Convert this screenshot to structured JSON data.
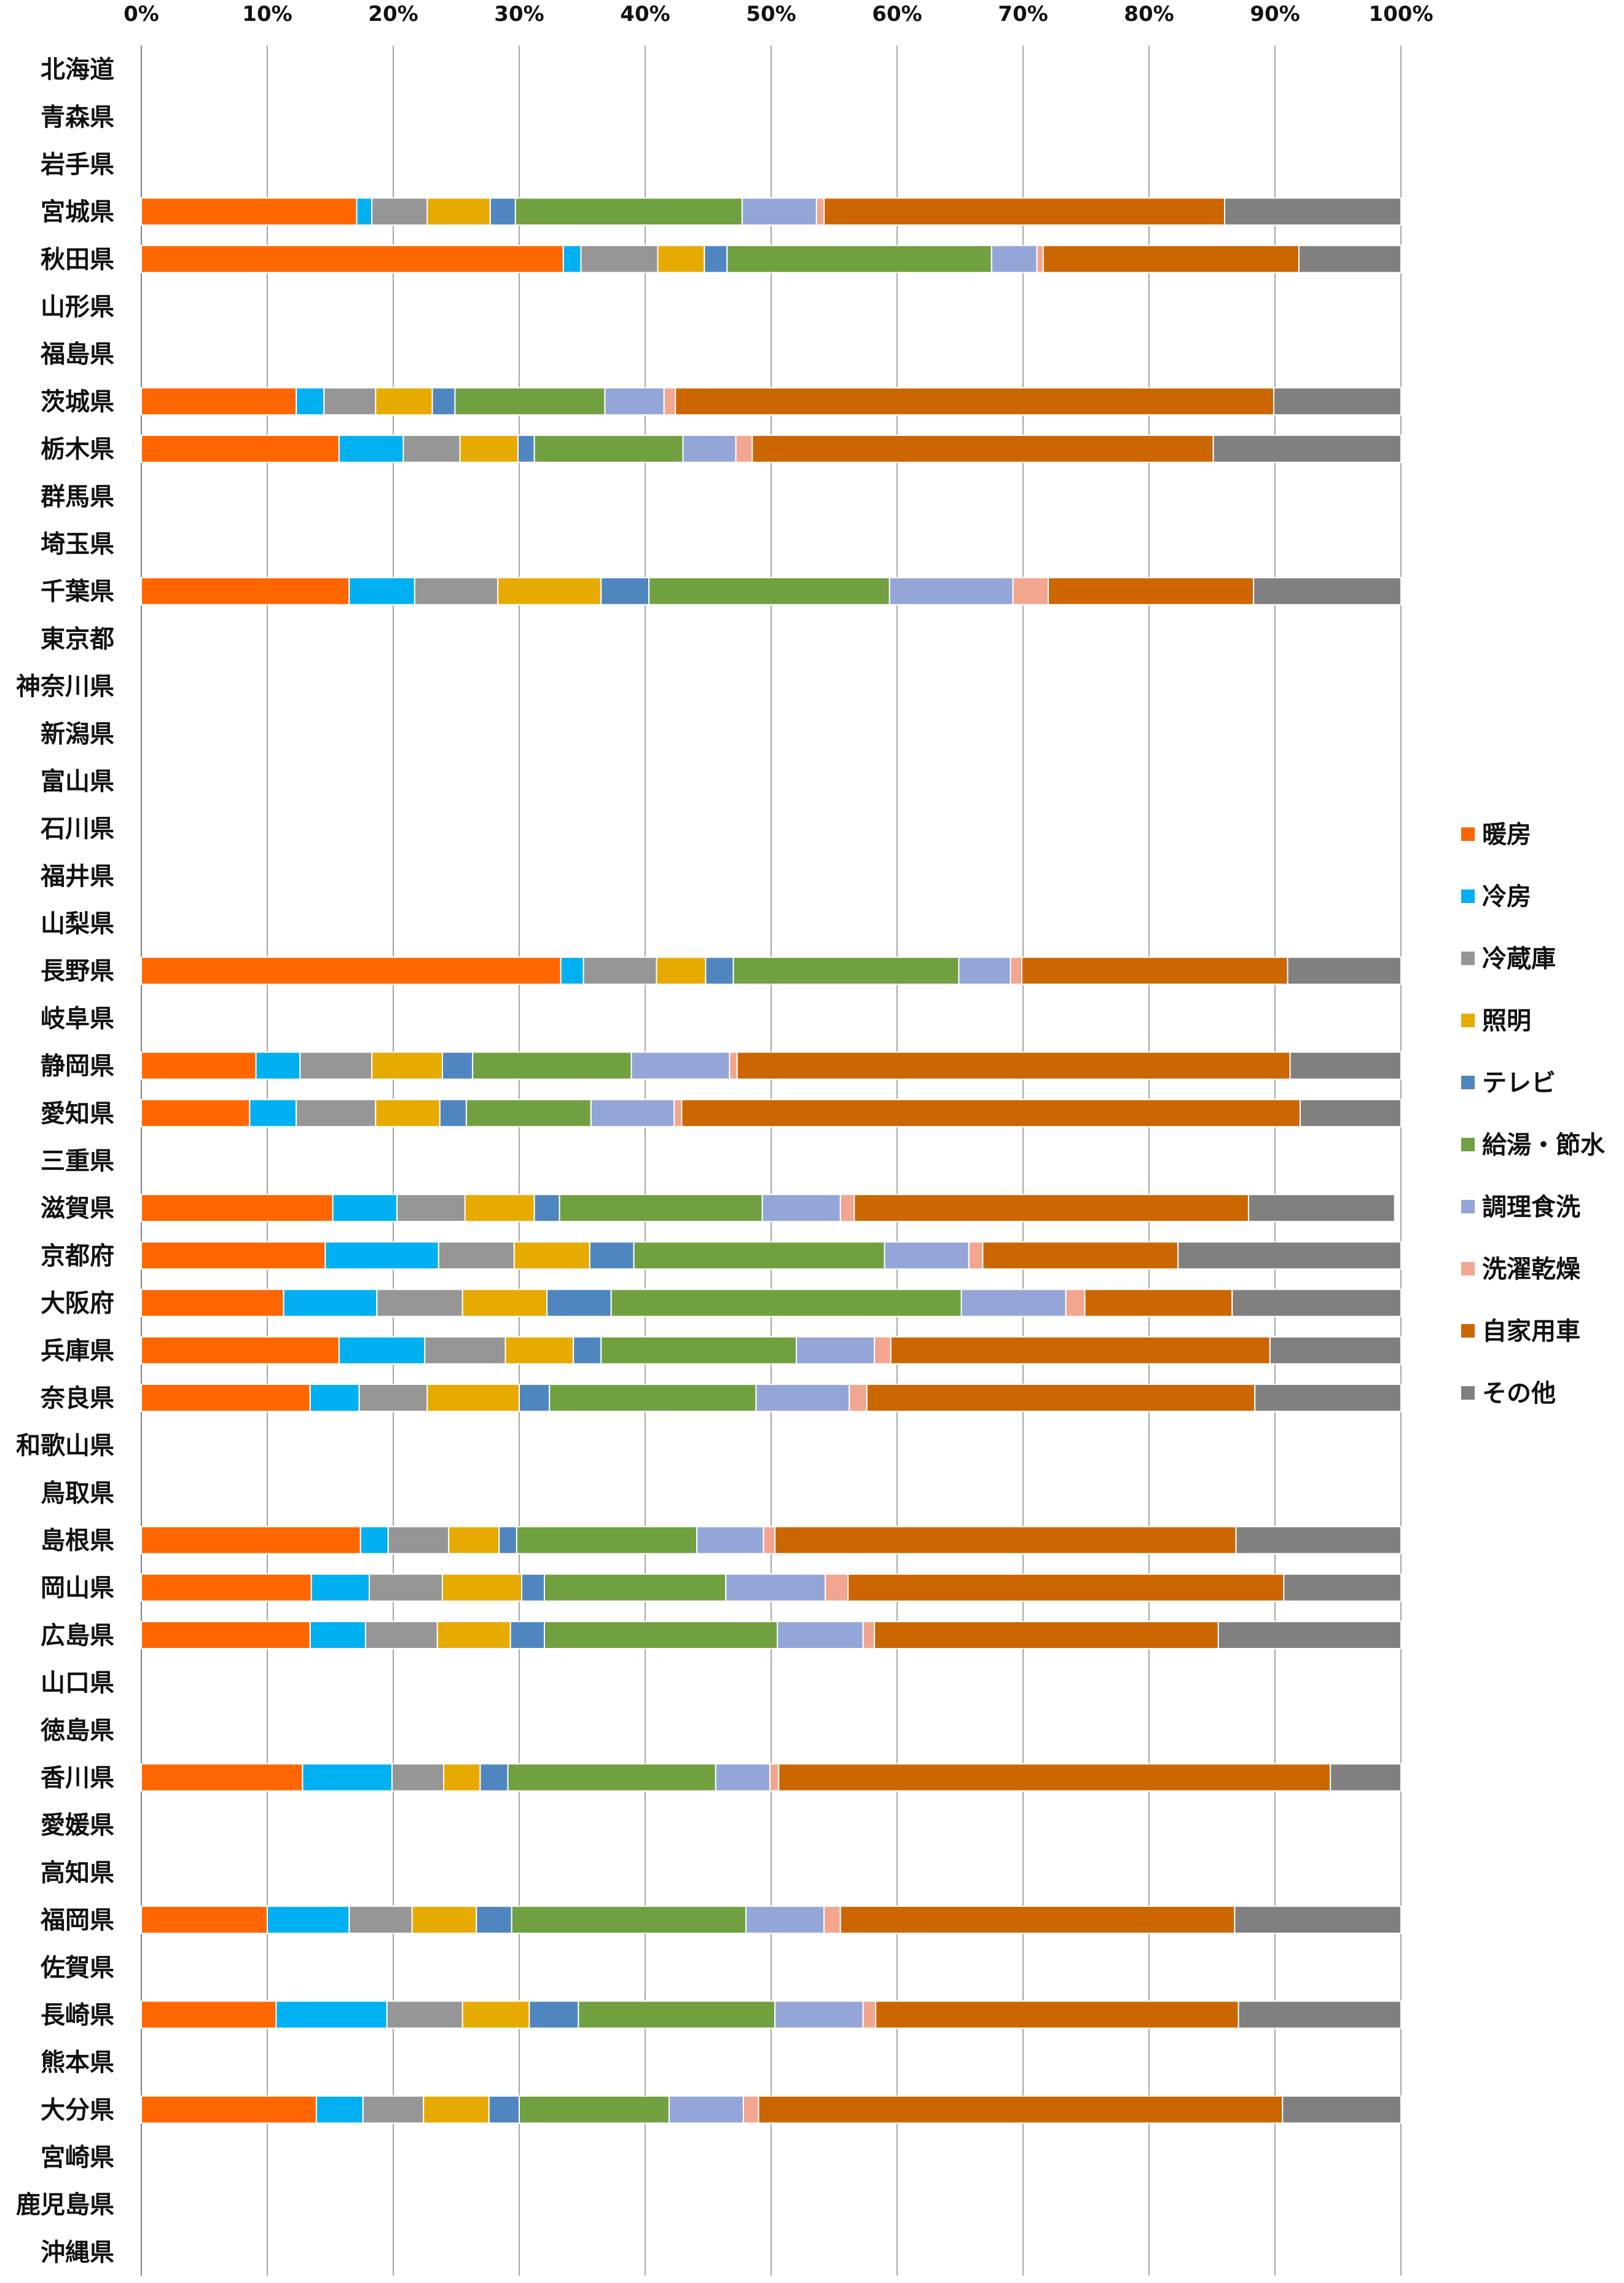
{
  "chart_data": {
    "type": "bar",
    "orientation": "horizontal",
    "stacked": "percent",
    "xlim": [
      0,
      100
    ],
    "x_ticks": [
      "0%",
      "10%",
      "20%",
      "30%",
      "40%",
      "50%",
      "60%",
      "70%",
      "80%",
      "90%",
      "100%"
    ],
    "grid": "vertical",
    "legend_position": "right",
    "categories": [
      "北海道",
      "青森県",
      "岩手県",
      "宮城県",
      "秋田県",
      "山形県",
      "福島県",
      "茨城県",
      "栃木県",
      "群馬県",
      "埼玉県",
      "千葉県",
      "東京都",
      "神奈川県",
      "新潟県",
      "富山県",
      "石川県",
      "福井県",
      "山梨県",
      "長野県",
      "岐阜県",
      "静岡県",
      "愛知県",
      "三重県",
      "滋賀県",
      "京都府",
      "大阪府",
      "兵庫県",
      "奈良県",
      "和歌山県",
      "鳥取県",
      "島根県",
      "岡山県",
      "広島県",
      "山口県",
      "徳島県",
      "香川県",
      "愛媛県",
      "高知県",
      "福岡県",
      "佐賀県",
      "長崎県",
      "熊本県",
      "大分県",
      "宮崎県",
      "鹿児島県",
      "沖縄県"
    ],
    "series": [
      {
        "name": "暖房",
        "color": "#FF6600",
        "values": [
          null,
          null,
          null,
          17.1,
          33.5,
          null,
          null,
          12.3,
          15.7,
          null,
          null,
          16.5,
          null,
          null,
          null,
          null,
          null,
          null,
          null,
          33.3,
          null,
          9.1,
          8.6,
          null,
          15.2,
          14.6,
          11.3,
          15.7,
          13.4,
          null,
          null,
          17.4,
          13.5,
          13.4,
          null,
          null,
          12.8,
          null,
          null,
          10.0,
          null,
          10.7,
          null,
          13.9,
          null,
          null,
          null
        ]
      },
      {
        "name": "冷房",
        "color": "#00B0F0",
        "values": [
          null,
          null,
          null,
          1.2,
          1.4,
          null,
          null,
          2.2,
          5.1,
          null,
          null,
          5.2,
          null,
          null,
          null,
          null,
          null,
          null,
          null,
          1.8,
          null,
          3.5,
          3.7,
          null,
          5.1,
          9.0,
          7.4,
          6.8,
          3.9,
          null,
          null,
          2.2,
          4.6,
          4.4,
          null,
          null,
          7.1,
          null,
          null,
          6.5,
          null,
          8.8,
          null,
          3.7,
          null,
          null,
          null
        ]
      },
      {
        "name": "冷蔵庫",
        "color": "#969696",
        "values": [
          null,
          null,
          null,
          4.4,
          6.1,
          null,
          null,
          4.1,
          4.5,
          null,
          null,
          6.6,
          null,
          null,
          null,
          null,
          null,
          null,
          null,
          5.8,
          null,
          5.7,
          6.3,
          null,
          5.4,
          6.0,
          6.8,
          6.4,
          5.4,
          null,
          null,
          4.8,
          5.8,
          5.7,
          null,
          null,
          4.1,
          null,
          null,
          5.0,
          null,
          6.0,
          null,
          4.8,
          null,
          null,
          null
        ]
      },
      {
        "name": "照明",
        "color": "#E6AA00",
        "values": [
          null,
          null,
          null,
          5.0,
          3.7,
          null,
          null,
          4.5,
          4.6,
          null,
          null,
          8.2,
          null,
          null,
          null,
          null,
          null,
          null,
          null,
          3.9,
          null,
          5.6,
          5.1,
          null,
          5.5,
          6.0,
          6.7,
          5.4,
          7.3,
          null,
          null,
          4.0,
          6.3,
          5.8,
          null,
          null,
          2.9,
          null,
          null,
          5.1,
          null,
          5.3,
          null,
          5.2,
          null,
          null,
          null
        ]
      },
      {
        "name": "テレビ",
        "color": "#4F86C0",
        "values": [
          null,
          null,
          null,
          2.0,
          1.8,
          null,
          null,
          1.8,
          1.3,
          null,
          null,
          3.8,
          null,
          null,
          null,
          null,
          null,
          null,
          null,
          2.2,
          null,
          2.4,
          2.1,
          null,
          2.0,
          3.5,
          5.1,
          2.2,
          2.4,
          null,
          null,
          1.4,
          1.8,
          2.7,
          null,
          null,
          2.2,
          null,
          null,
          2.8,
          null,
          3.9,
          null,
          2.4,
          null,
          null,
          null
        ]
      },
      {
        "name": "給湯・節水",
        "color": "#70A040",
        "values": [
          null,
          null,
          null,
          18.0,
          21.0,
          null,
          null,
          11.9,
          11.8,
          null,
          null,
          19.1,
          null,
          null,
          null,
          null,
          null,
          null,
          null,
          17.9,
          null,
          12.6,
          9.9,
          null,
          16.1,
          19.9,
          27.8,
          15.5,
          16.4,
          null,
          null,
          14.3,
          14.4,
          18.5,
          null,
          null,
          16.5,
          null,
          null,
          18.6,
          null,
          15.6,
          null,
          11.9,
          null,
          null,
          null
        ]
      },
      {
        "name": "調理食洗",
        "color": "#94A6D8",
        "values": [
          null,
          null,
          null,
          5.9,
          3.6,
          null,
          null,
          4.7,
          4.2,
          null,
          null,
          9.8,
          null,
          null,
          null,
          null,
          null,
          null,
          null,
          4.1,
          null,
          7.8,
          6.6,
          null,
          6.2,
          6.7,
          8.3,
          6.2,
          7.4,
          null,
          null,
          5.3,
          7.9,
          6.8,
          null,
          null,
          4.3,
          null,
          null,
          6.2,
          null,
          7.0,
          null,
          5.9,
          null,
          null,
          null
        ]
      },
      {
        "name": "洗濯乾燥",
        "color": "#F2A58F",
        "values": [
          null,
          null,
          null,
          0.6,
          0.5,
          null,
          null,
          0.9,
          1.3,
          null,
          null,
          2.8,
          null,
          null,
          null,
          null,
          null,
          null,
          null,
          0.9,
          null,
          0.6,
          0.6,
          null,
          1.1,
          1.1,
          1.5,
          1.3,
          1.4,
          null,
          null,
          0.9,
          1.8,
          0.9,
          null,
          null,
          0.7,
          null,
          null,
          1.3,
          null,
          1.0,
          null,
          1.2,
          null,
          null,
          null
        ]
      },
      {
        "name": "自家用車",
        "color": "#CC6600",
        "values": [
          null,
          null,
          null,
          31.8,
          20.3,
          null,
          null,
          47.5,
          36.6,
          null,
          null,
          16.3,
          null,
          null,
          null,
          null,
          null,
          null,
          null,
          21.1,
          null,
          43.9,
          49.1,
          null,
          31.3,
          15.5,
          11.7,
          30.1,
          30.8,
          null,
          null,
          36.6,
          34.6,
          27.3,
          null,
          null,
          43.8,
          null,
          null,
          31.3,
          null,
          28.8,
          null,
          41.6,
          null,
          null,
          null
        ]
      },
      {
        "name": "その他",
        "color": "#808080",
        "values": [
          null,
          null,
          null,
          14.0,
          8.1,
          null,
          null,
          10.1,
          14.9,
          null,
          null,
          11.7,
          null,
          null,
          null,
          null,
          null,
          null,
          null,
          9.0,
          null,
          8.8,
          8.0,
          null,
          11.6,
          17.7,
          13.4,
          10.4,
          11.6,
          null,
          null,
          13.1,
          9.3,
          14.5,
          null,
          null,
          5.6,
          null,
          null,
          13.2,
          null,
          12.9,
          null,
          9.4,
          null,
          null,
          null
        ]
      }
    ]
  }
}
